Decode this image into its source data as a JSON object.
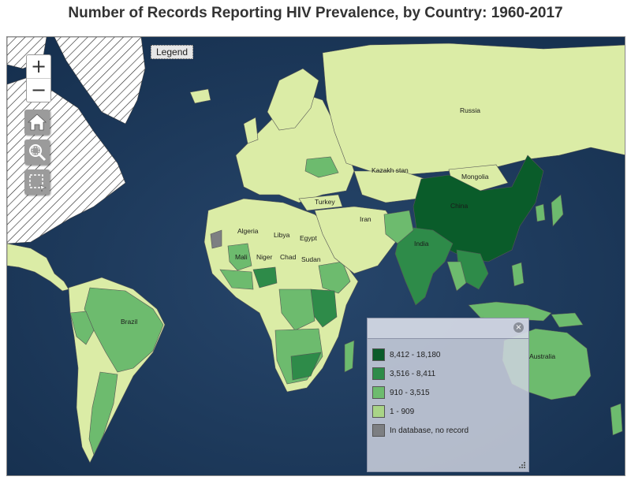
{
  "title": "Number of Records Reporting HIV Prevalence, by Country: 1960-2017",
  "controls": {
    "zoom_in": "+",
    "zoom_out": "−",
    "legend_button": "Legend",
    "close": "×"
  },
  "icons": [
    "plus-icon",
    "minus-icon",
    "home-icon",
    "zoom-extent-icon",
    "box-select-icon",
    "close-icon",
    "resize-grip-icon"
  ],
  "colors": {
    "ocean": "#1f3a5c",
    "class1": "#0a5c2a",
    "class2": "#2e8b49",
    "class3": "#6dbb6e",
    "class4": "#a9d487",
    "base": "#dbeca6",
    "no_record": "#7d7f82",
    "no_data_hatch": "#ffffff"
  },
  "legend": {
    "items": [
      {
        "label": "8,412 - 18,180",
        "color": "#0a5c2a"
      },
      {
        "label": "3,516 - 8,411",
        "color": "#2e8b49"
      },
      {
        "label": "910 - 3,515",
        "color": "#6dbb6e"
      },
      {
        "label": "1 - 909",
        "color": "#a9d487"
      },
      {
        "label": "In database, no record",
        "color": "#7d7f82"
      }
    ]
  },
  "country_labels": {
    "russia": "Russia",
    "kazakhstan": "Kazakh stan",
    "mongolia": "Mongolia",
    "china": "China",
    "turkey": "Turkey",
    "iran": "Iran",
    "india": "India",
    "algeria": "Algeria",
    "libya": "Libya",
    "egypt": "Egypt",
    "mali": "Mali",
    "niger": "Niger",
    "chad": "Chad",
    "sudan": "Sudan",
    "brazil": "Brazil",
    "australia": "Australia"
  }
}
